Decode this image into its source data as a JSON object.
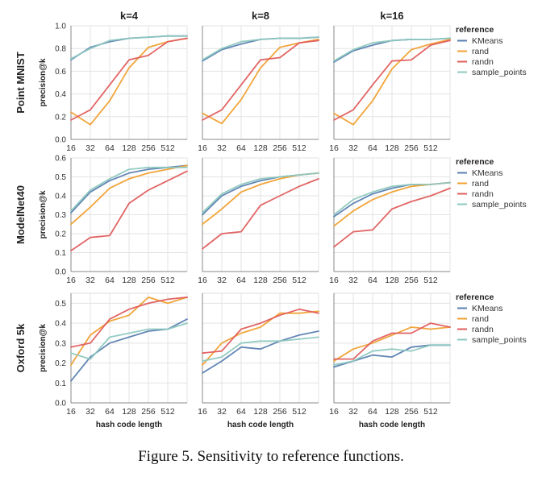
{
  "caption": "Figure 5. Sensitivity to reference functions.",
  "series_colors": {
    "KMeans": "#5a7fb0",
    "rand": "#f0a030",
    "randn": "#e05d5d",
    "sample_points": "#8ec8c0"
  },
  "chart_data": {
    "type": "line",
    "column_titles": [
      "k=4",
      "k=8",
      "k=16"
    ],
    "row_titles": [
      "Point MNIST",
      "ModelNet40",
      "Oxford 5k"
    ],
    "xlabel": "hash code length",
    "ylabel": "precision@k",
    "x": [
      16,
      32,
      64,
      128,
      256,
      512,
      1024
    ],
    "x_tick_labels": [
      "16",
      "32",
      "64",
      "128",
      "256",
      "512"
    ],
    "legend_title": "reference",
    "legend_entries": [
      "KMeans",
      "rand",
      "randn",
      "sample_points"
    ],
    "rows": [
      {
        "ylim": [
          0,
          1
        ],
        "y_ticks": [
          0.0,
          0.2,
          0.4,
          0.6,
          0.8,
          1.0
        ],
        "y_tick_labels": [
          "0.0",
          "0.2",
          "0.4",
          "0.6",
          "0.8",
          "1.0"
        ],
        "panels": [
          {
            "series": [
              {
                "name": "KMeans",
                "values": [
                  0.7,
                  0.81,
                  0.86,
                  0.89,
                  0.9,
                  0.91,
                  0.91
                ]
              },
              {
                "name": "rand",
                "values": [
                  0.24,
                  0.13,
                  0.34,
                  0.63,
                  0.81,
                  0.86,
                  0.89
                ]
              },
              {
                "name": "randn",
                "values": [
                  0.17,
                  0.26,
                  0.48,
                  0.7,
                  0.74,
                  0.86,
                  0.89
                ]
              },
              {
                "name": "sample_points",
                "values": [
                  0.71,
                  0.8,
                  0.87,
                  0.89,
                  0.9,
                  0.91,
                  0.91
                ]
              }
            ]
          },
          {
            "series": [
              {
                "name": "KMeans",
                "values": [
                  0.69,
                  0.79,
                  0.84,
                  0.88,
                  0.89,
                  0.89,
                  0.9
                ]
              },
              {
                "name": "rand",
                "values": [
                  0.23,
                  0.14,
                  0.35,
                  0.63,
                  0.81,
                  0.85,
                  0.88
                ]
              },
              {
                "name": "randn",
                "values": [
                  0.17,
                  0.26,
                  0.48,
                  0.7,
                  0.72,
                  0.85,
                  0.87
                ]
              },
              {
                "name": "sample_points",
                "values": [
                  0.7,
                  0.8,
                  0.86,
                  0.88,
                  0.89,
                  0.89,
                  0.9
                ]
              }
            ]
          },
          {
            "series": [
              {
                "name": "KMeans",
                "values": [
                  0.68,
                  0.78,
                  0.83,
                  0.87,
                  0.88,
                  0.88,
                  0.89
                ]
              },
              {
                "name": "rand",
                "values": [
                  0.23,
                  0.13,
                  0.34,
                  0.62,
                  0.79,
                  0.84,
                  0.88
                ]
              },
              {
                "name": "randn",
                "values": [
                  0.17,
                  0.26,
                  0.48,
                  0.69,
                  0.7,
                  0.83,
                  0.87
                ]
              },
              {
                "name": "sample_points",
                "values": [
                  0.69,
                  0.79,
                  0.85,
                  0.87,
                  0.88,
                  0.88,
                  0.89
                ]
              }
            ]
          }
        ]
      },
      {
        "ylim": [
          0,
          0.6
        ],
        "y_ticks": [
          0.0,
          0.1,
          0.2,
          0.3,
          0.4,
          0.5,
          0.6
        ],
        "y_tick_labels": [
          "0.0",
          "0.1",
          "0.2",
          "0.3",
          "0.4",
          "0.5",
          "0.6"
        ],
        "panels": [
          {
            "series": [
              {
                "name": "KMeans",
                "values": [
                  0.31,
                  0.42,
                  0.48,
                  0.52,
                  0.54,
                  0.55,
                  0.56
                ]
              },
              {
                "name": "rand",
                "values": [
                  0.25,
                  0.34,
                  0.44,
                  0.49,
                  0.52,
                  0.54,
                  0.56
                ]
              },
              {
                "name": "randn",
                "values": [
                  0.11,
                  0.18,
                  0.19,
                  0.36,
                  0.43,
                  0.48,
                  0.53
                ]
              },
              {
                "name": "sample_points",
                "values": [
                  0.32,
                  0.43,
                  0.49,
                  0.54,
                  0.55,
                  0.55,
                  0.55
                ]
              }
            ]
          },
          {
            "series": [
              {
                "name": "KMeans",
                "values": [
                  0.3,
                  0.4,
                  0.45,
                  0.48,
                  0.5,
                  0.51,
                  0.52
                ]
              },
              {
                "name": "rand",
                "values": [
                  0.25,
                  0.33,
                  0.42,
                  0.46,
                  0.49,
                  0.51,
                  0.52
                ]
              },
              {
                "name": "randn",
                "values": [
                  0.12,
                  0.2,
                  0.21,
                  0.35,
                  0.4,
                  0.45,
                  0.49
                ]
              },
              {
                "name": "sample_points",
                "values": [
                  0.31,
                  0.41,
                  0.46,
                  0.49,
                  0.5,
                  0.51,
                  0.52
                ]
              }
            ]
          },
          {
            "series": [
              {
                "name": "KMeans",
                "values": [
                  0.29,
                  0.36,
                  0.41,
                  0.44,
                  0.46,
                  0.46,
                  0.47
                ]
              },
              {
                "name": "rand",
                "values": [
                  0.24,
                  0.32,
                  0.38,
                  0.42,
                  0.45,
                  0.46,
                  0.47
                ]
              },
              {
                "name": "randn",
                "values": [
                  0.13,
                  0.21,
                  0.22,
                  0.33,
                  0.37,
                  0.4,
                  0.44
                ]
              },
              {
                "name": "sample_points",
                "values": [
                  0.3,
                  0.38,
                  0.42,
                  0.45,
                  0.46,
                  0.46,
                  0.47
                ]
              }
            ]
          }
        ]
      },
      {
        "ylim": [
          0,
          0.55
        ],
        "y_ticks": [
          0.0,
          0.1,
          0.2,
          0.3,
          0.4,
          0.5
        ],
        "y_tick_labels": [
          "0.0",
          "0.1",
          "0.2",
          "0.3",
          "0.4",
          "0.5"
        ],
        "panels": [
          {
            "series": [
              {
                "name": "KMeans",
                "values": [
                  0.11,
                  0.23,
                  0.3,
                  0.33,
                  0.36,
                  0.37,
                  0.42
                ]
              },
              {
                "name": "rand",
                "values": [
                  0.19,
                  0.34,
                  0.41,
                  0.44,
                  0.53,
                  0.5,
                  0.53
                ]
              },
              {
                "name": "randn",
                "values": [
                  0.28,
                  0.3,
                  0.42,
                  0.47,
                  0.5,
                  0.52,
                  0.53
                ]
              },
              {
                "name": "sample_points",
                "values": [
                  0.25,
                  0.22,
                  0.33,
                  0.35,
                  0.37,
                  0.37,
                  0.4
                ]
              }
            ]
          },
          {
            "series": [
              {
                "name": "KMeans",
                "values": [
                  0.15,
                  0.21,
                  0.28,
                  0.27,
                  0.31,
                  0.34,
                  0.36
                ]
              },
              {
                "name": "rand",
                "values": [
                  0.19,
                  0.3,
                  0.35,
                  0.38,
                  0.45,
                  0.45,
                  0.46
                ]
              },
              {
                "name": "randn",
                "values": [
                  0.25,
                  0.26,
                  0.37,
                  0.4,
                  0.44,
                  0.47,
                  0.45
                ]
              },
              {
                "name": "sample_points",
                "values": [
                  0.21,
                  0.23,
                  0.3,
                  0.31,
                  0.31,
                  0.32,
                  0.33
                ]
              }
            ]
          },
          {
            "series": [
              {
                "name": "KMeans",
                "values": [
                  0.18,
                  0.21,
                  0.24,
                  0.23,
                  0.28,
                  0.29,
                  0.29
                ]
              },
              {
                "name": "rand",
                "values": [
                  0.21,
                  0.27,
                  0.3,
                  0.34,
                  0.38,
                  0.37,
                  0.38
                ]
              },
              {
                "name": "randn",
                "values": [
                  0.22,
                  0.22,
                  0.31,
                  0.35,
                  0.35,
                  0.4,
                  0.38
                ]
              },
              {
                "name": "sample_points",
                "values": [
                  0.19,
                  0.21,
                  0.26,
                  0.27,
                  0.26,
                  0.29,
                  0.29
                ]
              }
            ]
          }
        ]
      }
    ]
  }
}
